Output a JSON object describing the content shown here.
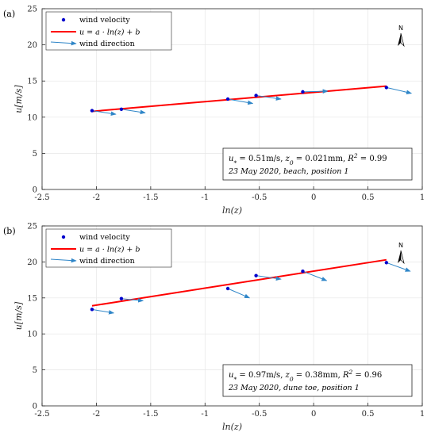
{
  "chart_data": [
    {
      "type": "scatter",
      "panel_label": "(a)",
      "xlabel": "ln(z)",
      "ylabel": "u[m/s]",
      "xlim": [
        -2.5,
        1
      ],
      "ylim": [
        0,
        25
      ],
      "xticks": [
        "-2.5",
        "-2",
        "-1.5",
        "-1",
        "-0.5",
        "0",
        "0.5",
        "1"
      ],
      "yticks": [
        "0",
        "5",
        "10",
        "15",
        "20",
        "25"
      ],
      "grid": true,
      "legend": {
        "placement": "top-left",
        "entries": [
          "wind velocity",
          "u = a · ln(z) + b",
          "wind direction"
        ]
      },
      "north_label": "N",
      "series": [
        {
          "name": "wind velocity",
          "kind": "points",
          "color": "#0000cc",
          "x": [
            -2.04,
            -1.77,
            -0.79,
            -0.53,
            -0.1,
            0.67
          ],
          "y": [
            10.9,
            11.1,
            12.5,
            13.0,
            13.5,
            14.1
          ]
        },
        {
          "name": "u = a · ln(z) + b",
          "kind": "fit-line",
          "color": "#ff0000",
          "x": [
            -2.04,
            0.67
          ],
          "y": [
            10.8,
            14.3
          ]
        },
        {
          "name": "wind direction",
          "kind": "arrows",
          "color": "#2f86c8",
          "x": [
            -2.04,
            -1.77,
            -0.79,
            -0.53,
            -0.1,
            0.67
          ],
          "y": [
            10.9,
            11.1,
            12.5,
            13.0,
            13.5,
            14.1
          ],
          "dx": [
            0.22,
            0.22,
            0.23,
            0.23,
            0.23,
            0.23
          ],
          "dy": [
            -0.5,
            -0.5,
            -0.6,
            -0.5,
            0.1,
            -0.8
          ]
        }
      ],
      "annotation": {
        "line1": "u* = 0.51m/s, z0 = 0.021mm, R2 = 0.99",
        "line2": "23 May 2020, beach, position 1"
      }
    },
    {
      "type": "scatter",
      "panel_label": "(b)",
      "xlabel": "ln(z)",
      "ylabel": "u[m/s]",
      "xlim": [
        -2.5,
        1
      ],
      "ylim": [
        0,
        25
      ],
      "xticks": [
        "-2.5",
        "-2",
        "-1.5",
        "-1",
        "-0.5",
        "0",
        "0.5",
        "1"
      ],
      "yticks": [
        "0",
        "5",
        "10",
        "15",
        "20",
        "25"
      ],
      "grid": true,
      "legend": {
        "placement": "top-left",
        "entries": [
          "wind velocity",
          "u = a · ln(z) + b",
          "wind direction"
        ]
      },
      "north_label": "N",
      "series": [
        {
          "name": "wind velocity",
          "kind": "points",
          "color": "#0000cc",
          "x": [
            -2.04,
            -1.77,
            -0.79,
            -0.53,
            -0.1,
            0.67
          ],
          "y": [
            13.4,
            14.9,
            16.3,
            18.1,
            18.7,
            19.9
          ]
        },
        {
          "name": "u = a · ln(z) + b",
          "kind": "fit-line",
          "color": "#ff0000",
          "x": [
            -2.04,
            0.67
          ],
          "y": [
            13.9,
            20.3
          ]
        },
        {
          "name": "wind direction",
          "kind": "arrows",
          "color": "#2f86c8",
          "x": [
            -2.04,
            -1.77,
            -0.79,
            -0.53,
            -0.1,
            0.67
          ],
          "y": [
            13.4,
            14.9,
            16.3,
            18.1,
            18.7,
            19.9
          ],
          "dx": [
            0.2,
            0.2,
            0.2,
            0.23,
            0.22,
            0.22
          ],
          "dy": [
            -0.5,
            -0.3,
            -1.3,
            -0.5,
            -1.3,
            -1.2
          ]
        }
      ],
      "annotation": {
        "line1": "u* = 0.97m/s, z0 = 0.38mm, R2 = 0.96",
        "line2": "23 May 2020, dune toe, position 1"
      }
    }
  ]
}
